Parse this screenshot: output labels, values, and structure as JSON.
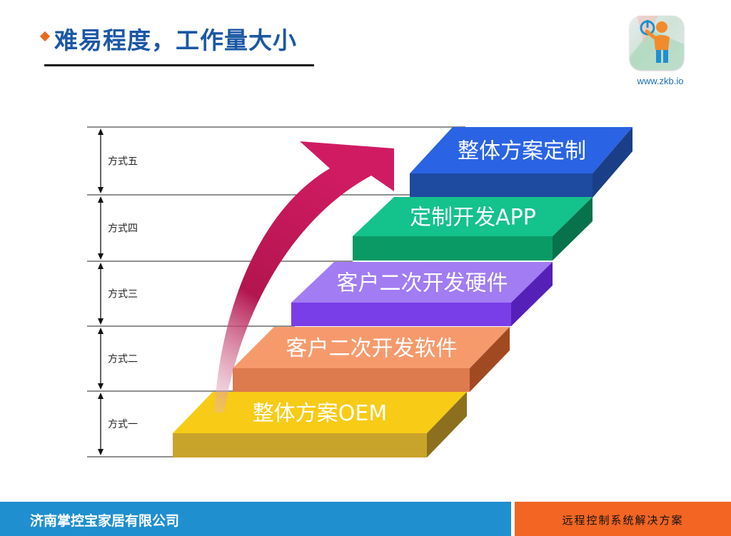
{
  "title": "难易程度，工作量大小",
  "logo": {
    "icon": "power-person-icon",
    "url": "www.zkb.io"
  },
  "levels": [
    {
      "label": "方式五",
      "step": "整体方案定制",
      "top": "#2a64e4",
      "front": "#1e4aa0",
      "side": "#1a3f88"
    },
    {
      "label": "方式四",
      "step": "定制开发APP",
      "top": "#14c28c",
      "front": "#0a9a66",
      "side": "#08724c"
    },
    {
      "label": "方式三",
      "step": "客户二次开发硬件",
      "top": "#a27cf2",
      "front": "#7a3ee8",
      "side": "#5520b8"
    },
    {
      "label": "方式二",
      "step": "客户二次开发软件",
      "top": "#f69a6c",
      "front": "#dd7a4e",
      "side": "#a14a22"
    },
    {
      "label": "方式一",
      "step": "整体方案OEM",
      "top": "#f7cb16",
      "front": "#c9a42a",
      "side": "#8c7020"
    }
  ],
  "arrow_color": "#d01b63",
  "footer": {
    "company": "济南掌控宝家居有限公司",
    "tagline": "远程控制系统解决方案"
  }
}
